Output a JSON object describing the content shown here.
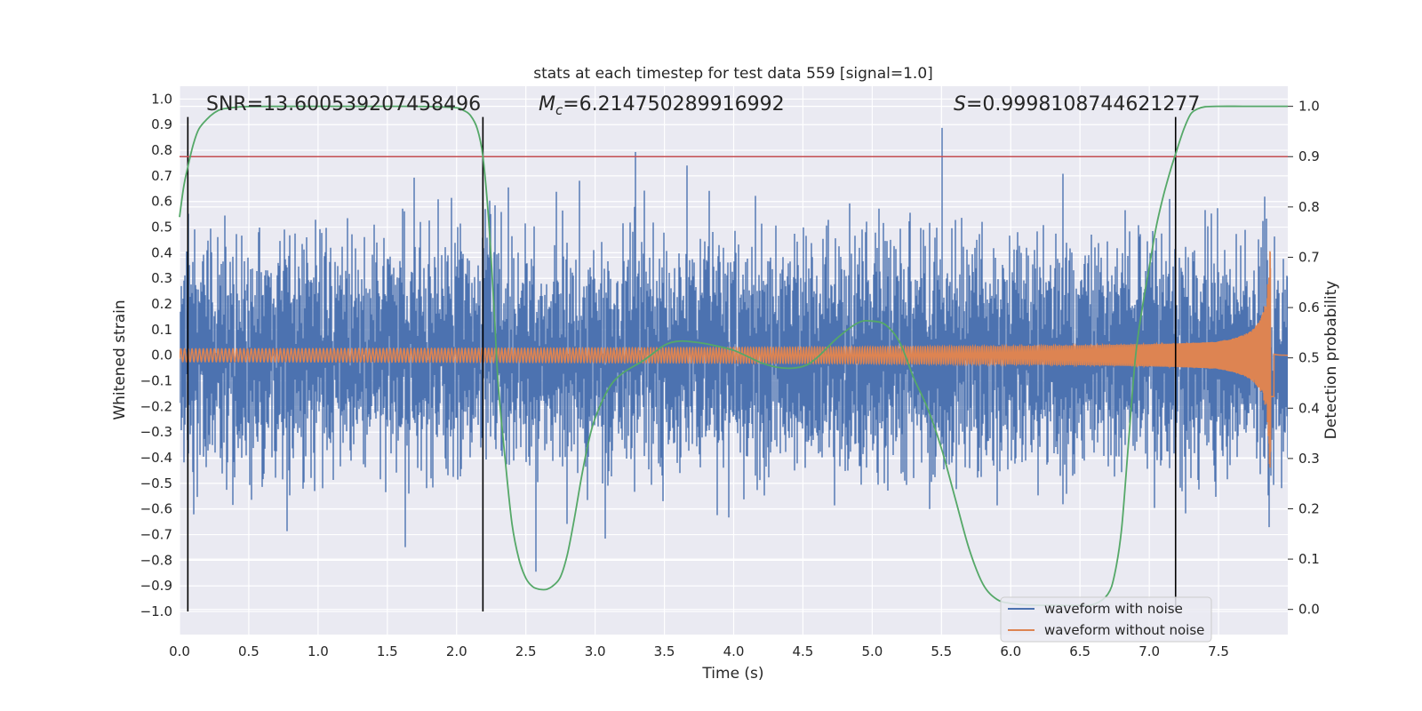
{
  "chart_data": {
    "type": "line",
    "title": "stats at each timestep for test data 559 [signal=1.0]",
    "xlabel": "Time (s)",
    "ylabel": "Whitened strain",
    "y2label": "Detection probability",
    "xlim": [
      0.0,
      8.0
    ],
    "ylim": [
      -1.09,
      1.05
    ],
    "y2lim": [
      -0.05,
      1.04
    ],
    "x_ticks": [
      "0.0",
      "0.5",
      "1.0",
      "1.5",
      "2.0",
      "2.5",
      "3.0",
      "3.5",
      "4.0",
      "4.5",
      "5.0",
      "5.5",
      "6.0",
      "6.5",
      "7.0",
      "7.5"
    ],
    "y_ticks": [
      "1.0",
      "0.9",
      "0.8",
      "0.7",
      "0.6",
      "0.5",
      "0.4",
      "0.3",
      "0.2",
      "0.1",
      "0.0",
      "−0.1",
      "−0.2",
      "−0.3",
      "−0.4",
      "−0.5",
      "−0.6",
      "−0.7",
      "−0.8",
      "−0.9",
      "−1.0"
    ],
    "y2_ticks": [
      "1.0",
      "0.9",
      "0.8",
      "0.7",
      "0.6",
      "0.5",
      "0.4",
      "0.3",
      "0.2",
      "0.1",
      "0.0"
    ],
    "grid": true,
    "legend_position": "lower-right",
    "annotations": {
      "snr": "SNR=13.600539207458496",
      "mc_symbol": "M",
      "mc_sub": "c",
      "mc_value": "=6.214750289916992",
      "s_symbol": "S",
      "s_value": "=0.9998108744621277"
    },
    "threshold": {
      "axis": "y2",
      "value": 0.9,
      "color": "#c44e52"
    },
    "event_lines_x": [
      0.06,
      2.19,
      7.19
    ],
    "series": [
      {
        "name": "waveform with noise",
        "axis": "y1",
        "color": "#4c72b0",
        "envelope_std": 0.2,
        "t_end": 8.0
      },
      {
        "name": "waveform without noise",
        "axis": "y1",
        "color": "#dd8452",
        "chirp": {
          "t_coalesce": 7.88,
          "amp_start": 0.025,
          "amp_peak": 0.44,
          "peak_t": 7.87,
          "t_end": 8.0
        }
      },
      {
        "name": "detection probability",
        "axis": "y2",
        "color": "#55a868",
        "x": [
          0.0,
          0.03,
          0.06,
          0.1,
          0.14,
          0.2,
          0.25,
          0.3,
          0.4,
          0.5,
          0.8,
          1.0,
          1.5,
          1.8,
          2.0,
          2.05,
          2.1,
          2.15,
          2.19,
          2.23,
          2.27,
          2.3,
          2.35,
          2.4,
          2.45,
          2.5,
          2.55,
          2.6,
          2.65,
          2.7,
          2.75,
          2.8,
          2.85,
          2.9,
          2.95,
          3.0,
          3.1,
          3.2,
          3.35,
          3.5,
          3.6,
          3.7,
          3.8,
          4.0,
          4.2,
          4.35,
          4.5,
          4.6,
          4.75,
          4.9,
          5.0,
          5.1,
          5.2,
          5.3,
          5.4,
          5.5,
          5.6,
          5.7,
          5.8,
          5.9,
          6.0,
          6.1,
          6.3,
          6.5,
          6.6,
          6.7,
          6.75,
          6.8,
          6.85,
          6.9,
          6.95,
          7.0,
          7.05,
          7.1,
          7.15,
          7.19,
          7.25,
          7.3,
          7.35,
          7.4,
          7.5,
          7.7,
          8.0
        ],
        "y": [
          0.78,
          0.84,
          0.88,
          0.925,
          0.955,
          0.975,
          0.987,
          0.994,
          0.998,
          0.9995,
          1.0,
          1.0,
          1.0,
          0.9995,
          0.997,
          0.992,
          0.982,
          0.955,
          0.9,
          0.78,
          0.6,
          0.45,
          0.3,
          0.17,
          0.1,
          0.062,
          0.045,
          0.04,
          0.04,
          0.048,
          0.065,
          0.11,
          0.18,
          0.26,
          0.33,
          0.38,
          0.44,
          0.47,
          0.495,
          0.525,
          0.533,
          0.532,
          0.528,
          0.515,
          0.49,
          0.48,
          0.483,
          0.5,
          0.54,
          0.57,
          0.573,
          0.565,
          0.53,
          0.46,
          0.4,
          0.32,
          0.22,
          0.12,
          0.05,
          0.02,
          0.012,
          0.009,
          0.008,
          0.008,
          0.01,
          0.03,
          0.07,
          0.16,
          0.33,
          0.5,
          0.6,
          0.68,
          0.76,
          0.82,
          0.87,
          0.905,
          0.955,
          0.985,
          0.995,
          0.999,
          1.0,
          1.0,
          1.0
        ]
      }
    ]
  }
}
